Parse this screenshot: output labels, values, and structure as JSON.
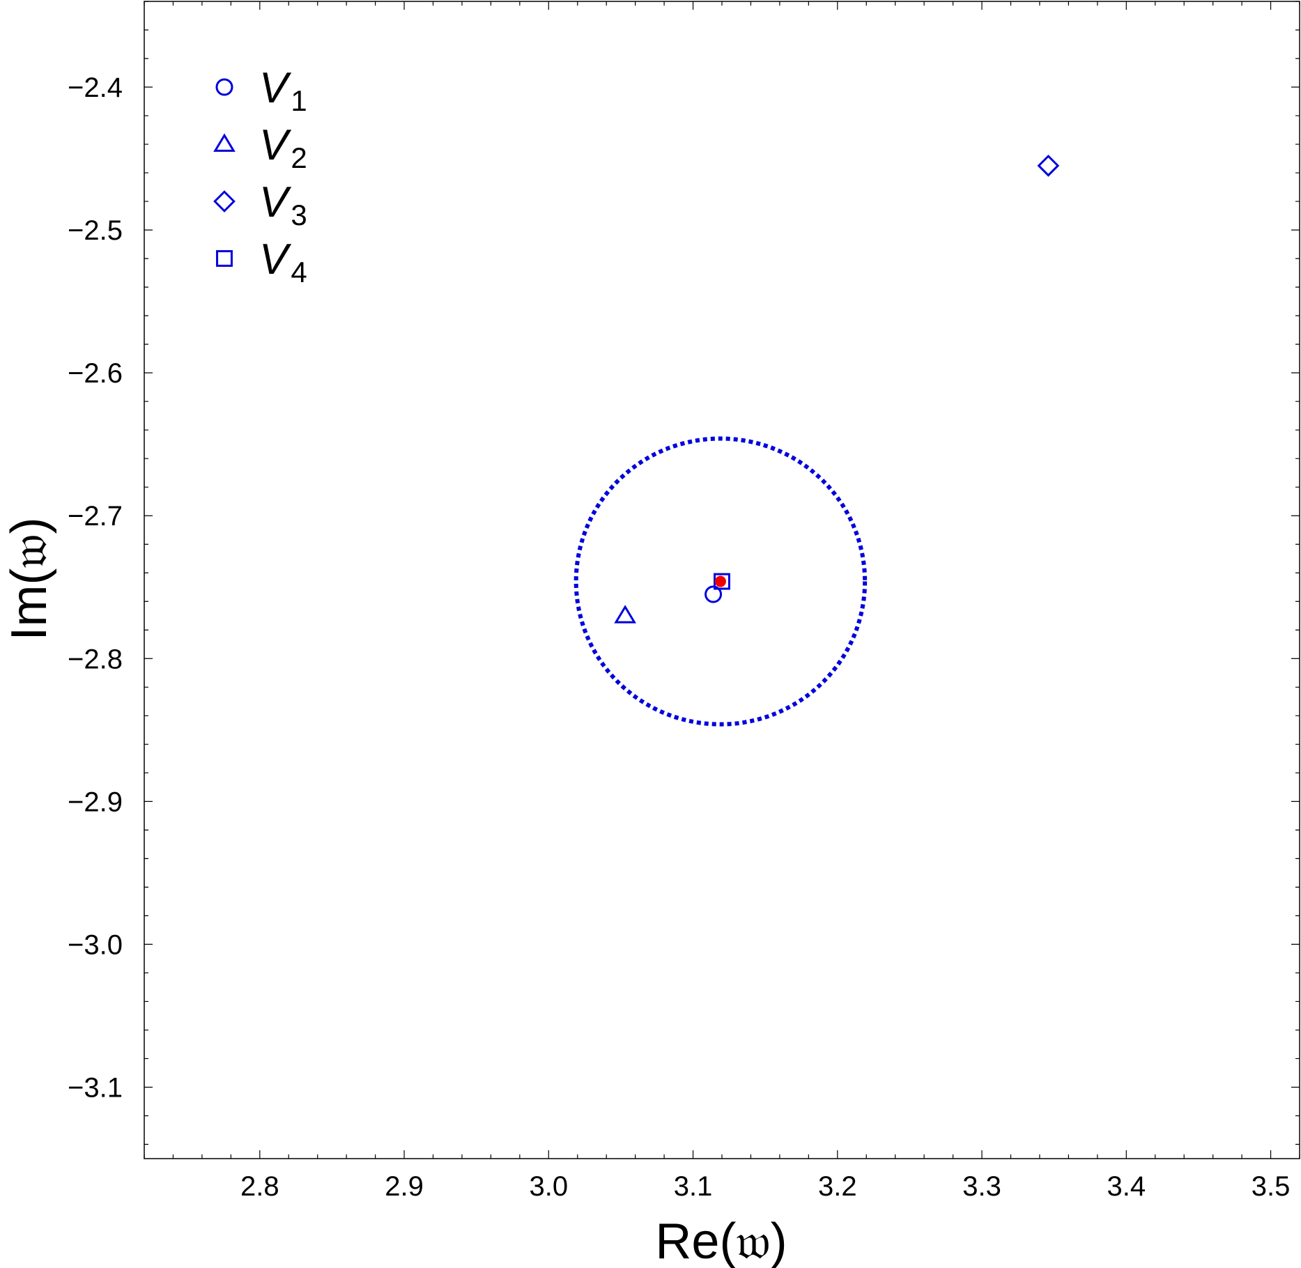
{
  "chart_data": {
    "type": "scatter",
    "xlabel": "Re(𝔴)",
    "ylabel": "Im(𝔴)",
    "xlim": [
      2.72,
      3.52
    ],
    "ylim": [
      -3.15,
      -2.34
    ],
    "xticks": [
      "2.8",
      "2.9",
      "3.0",
      "3.1",
      "3.2",
      "3.3",
      "3.4",
      "3.5"
    ],
    "yticks": [
      "-2.4",
      "-2.5",
      "-2.6",
      "-2.7",
      "-2.8",
      "-2.9",
      "-3.0",
      "-3.1"
    ],
    "grid": false,
    "legend_position": "top-left",
    "series": [
      {
        "name": "V",
        "sub": "1",
        "marker": "circle",
        "color": "#0000dd",
        "points": [
          {
            "x": 3.114,
            "y": -2.755
          }
        ]
      },
      {
        "name": "V",
        "sub": "2",
        "marker": "triangle",
        "color": "#0000dd",
        "points": [
          {
            "x": 3.053,
            "y": -2.77
          }
        ]
      },
      {
        "name": "V",
        "sub": "3",
        "marker": "diamond",
        "color": "#0000dd",
        "points": [
          {
            "x": 3.346,
            "y": -2.455
          }
        ]
      },
      {
        "name": "V",
        "sub": "4",
        "marker": "square",
        "color": "#0000dd",
        "points": [
          {
            "x": 3.12,
            "y": -2.746
          }
        ]
      }
    ],
    "reference_point": {
      "x": 3.119,
      "y": -2.746,
      "color": "#ee0000"
    },
    "circle": {
      "center_x": 3.119,
      "center_y": -2.746,
      "radius": 0.1,
      "style": "dotted",
      "color": "#0000dd"
    }
  }
}
